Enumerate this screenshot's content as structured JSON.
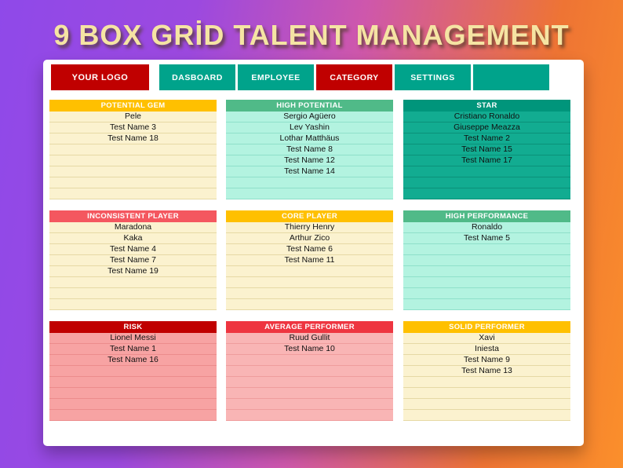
{
  "title": "9 BOX GRİD TALENT MANAGEMENT",
  "colors": {
    "teal": "#00A38B",
    "dark_red": "#C00000",
    "gold": "#FFC000",
    "green": "#50BA88",
    "salmon": "#F4575F",
    "bright_red": "#EE3540",
    "title_text": "#F5E4A3"
  },
  "nav": {
    "logo": "YOUR LOGO",
    "items": [
      {
        "label": "DASBOARD",
        "bg": "#00A38B"
      },
      {
        "label": "EMPLOYEE",
        "bg": "#00A38B"
      },
      {
        "label": "CATEGORY",
        "bg": "#C00000"
      },
      {
        "label": "SETTINGS",
        "bg": "#00A38B"
      },
      {
        "label": "",
        "bg": "#00A38B"
      }
    ]
  },
  "grid": {
    "rows_per_box": 8,
    "boxes": [
      {
        "title": "POTENTIAL GEM",
        "header_color": "#FFC000",
        "body_color": "#FBF2CF",
        "line_color": "#E6D9A5",
        "names": [
          "Pele",
          "Test Name 3",
          "Test Name 18"
        ]
      },
      {
        "title": "HIGH POTENTIAL",
        "header_color": "#50BA88",
        "body_color": "#B3F3E0",
        "line_color": "#8FE0CA",
        "names": [
          "Sergio Agüero",
          "Lev Yashin",
          "Lothar Matthäus",
          "Test Name 8",
          "Test Name 12",
          "Test Name 14"
        ]
      },
      {
        "title": "STAR",
        "header_color": "#00957B",
        "body_color": "#12AC91",
        "line_color": "#0A9179",
        "names": [
          "Cristiano Ronaldo",
          "Giuseppe Meazza",
          "Test Name 2",
          "Test Name 15",
          "Test Name 17"
        ]
      },
      {
        "title": "INCONSISTENT PLAYER",
        "header_color": "#F4575F",
        "body_color": "#FBF2CF",
        "line_color": "#E6D9A5",
        "names": [
          "Maradona",
          "Kaka",
          "Test Name 4",
          "Test Name 7",
          "Test Name 19"
        ]
      },
      {
        "title": "CORE PLAYER",
        "header_color": "#FFC000",
        "body_color": "#FBF2CF",
        "line_color": "#E6D9A5",
        "names": [
          "Thierry Henry",
          "Arthur Zico",
          "Test Name 6",
          "Test Name 11"
        ]
      },
      {
        "title": "HIGH PERFORMANCE",
        "header_color": "#50BA88",
        "body_color": "#B3F3E0",
        "line_color": "#8FE0CA",
        "names": [
          "Ronaldo",
          "Test Name 5"
        ]
      },
      {
        "title": "RISK",
        "header_color": "#C00000",
        "body_color": "#F7A3A3",
        "line_color": "#EC8C8C",
        "names": [
          "Lionel Messi",
          "Test Name 1",
          "Test Name 16"
        ]
      },
      {
        "title": "AVERAGE PERFORMER",
        "header_color": "#EE3540",
        "body_color": "#F9B5B5",
        "line_color": "#EF9D9D",
        "names": [
          "Ruud Gullit",
          "Test Name 10"
        ]
      },
      {
        "title": "SOLID PERFORMER",
        "header_color": "#FFC000",
        "body_color": "#FBF2CF",
        "line_color": "#E6D9A5",
        "names": [
          "Xavi",
          "Iniesta",
          "Test Name 9",
          "Test Name 13"
        ]
      }
    ]
  }
}
